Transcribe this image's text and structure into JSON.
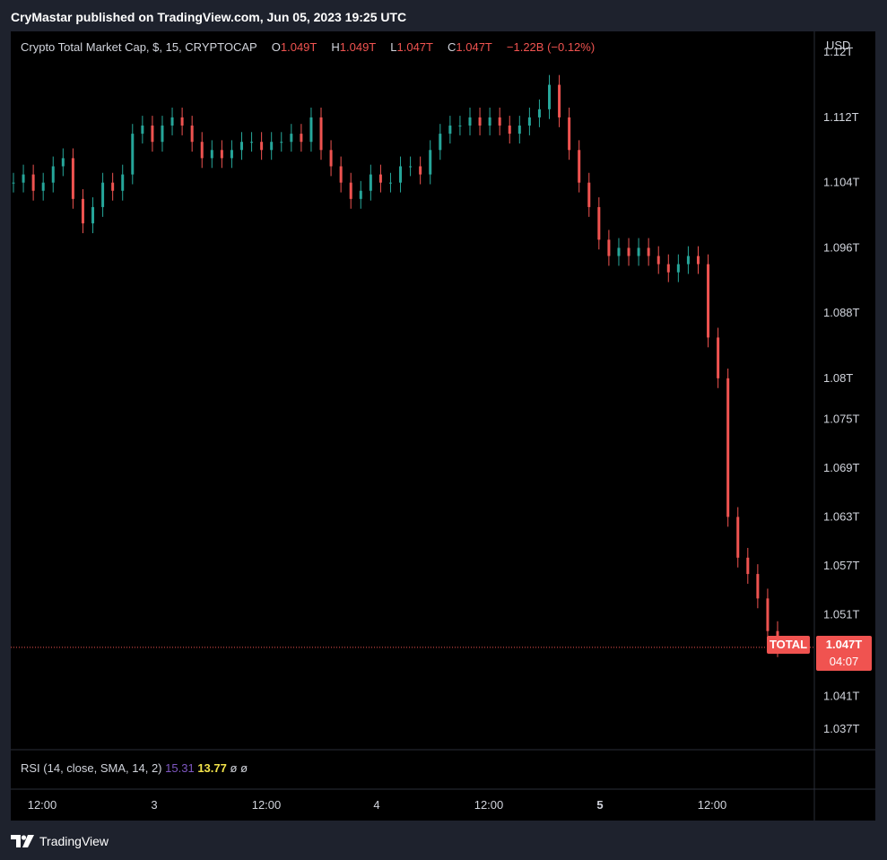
{
  "header": {
    "published": "CryMastar published on TradingView.com, Jun 05, 2023 19:25 UTC"
  },
  "legend": {
    "symbol": "Crypto Total Market Cap, $, 15, CRYPTOCAP",
    "o_label": "O",
    "o_value": "1.049T",
    "h_label": "H",
    "h_value": "1.049T",
    "l_label": "L",
    "l_value": "1.047T",
    "c_label": "C",
    "c_value": "1.047T",
    "change": "−1.22B (−0.12%)"
  },
  "rsi": {
    "label": "RSI (14, close, SMA, 14, 2)",
    "value1": "15.31",
    "value2": "13.77",
    "extra1": "ø",
    "extra2": "ø"
  },
  "axis": {
    "currency": "USD",
    "price_ticks": [
      {
        "label": "1.12T",
        "value": 1.12
      },
      {
        "label": "1.112T",
        "value": 1.112
      },
      {
        "label": "1.104T",
        "value": 1.104
      },
      {
        "label": "1.096T",
        "value": 1.096
      },
      {
        "label": "1.088T",
        "value": 1.088
      },
      {
        "label": "1.08T",
        "value": 1.08
      },
      {
        "label": "1.075T",
        "value": 1.075
      },
      {
        "label": "1.069T",
        "value": 1.069
      },
      {
        "label": "1.063T",
        "value": 1.063
      },
      {
        "label": "1.057T",
        "value": 1.057
      },
      {
        "label": "1.051T",
        "value": 1.051
      },
      {
        "label": "1.041T",
        "value": 1.041
      },
      {
        "label": "1.037T",
        "value": 1.037
      }
    ],
    "time_ticks": [
      {
        "label": "12:00",
        "bold": false
      },
      {
        "label": "3",
        "bold": false
      },
      {
        "label": "12:00",
        "bold": false
      },
      {
        "label": "4",
        "bold": false
      },
      {
        "label": "12:00",
        "bold": false
      },
      {
        "label": "5",
        "bold": true
      },
      {
        "label": "12:00",
        "bold": false
      }
    ]
  },
  "price_tag": {
    "name": "TOTAL",
    "value": "1.047T",
    "countdown": "04:07"
  },
  "footer": {
    "brand": "TradingView"
  },
  "colors": {
    "up": "#26a69a",
    "down": "#ef5350",
    "background": "#000000",
    "frame": "#1e222d"
  },
  "chart_data": {
    "type": "line",
    "title": "Crypto Total Market Cap, $, 15, CRYPTOCAP",
    "xlabel": "",
    "ylabel": "",
    "ylim": [
      1.035,
      1.122
    ],
    "last_price": 1.047,
    "series": [
      {
        "values": [
          1.104,
          1.105,
          1.103,
          1.104,
          1.106,
          1.107,
          1.102,
          1.099,
          1.101,
          1.104,
          1.103,
          1.105,
          1.11,
          1.111,
          1.109,
          1.111,
          1.112,
          1.111,
          1.109,
          1.107,
          1.108,
          1.107,
          1.108,
          1.109,
          1.109,
          1.108,
          1.109,
          1.109,
          1.11,
          1.109,
          1.112,
          1.108,
          1.106,
          1.104,
          1.102,
          1.103,
          1.105,
          1.104,
          1.104,
          1.106,
          1.106,
          1.105,
          1.108,
          1.11,
          1.111,
          1.111,
          1.112,
          1.111,
          1.112,
          1.111,
          1.11,
          1.111,
          1.112,
          1.113,
          1.116,
          1.112,
          1.108,
          1.104,
          1.101,
          1.097,
          1.095,
          1.096,
          1.095,
          1.096,
          1.095,
          1.094,
          1.093,
          1.094,
          1.095,
          1.094,
          1.085,
          1.08,
          1.063,
          1.058,
          1.056,
          1.053,
          1.049,
          1.047
        ]
      }
    ]
  }
}
